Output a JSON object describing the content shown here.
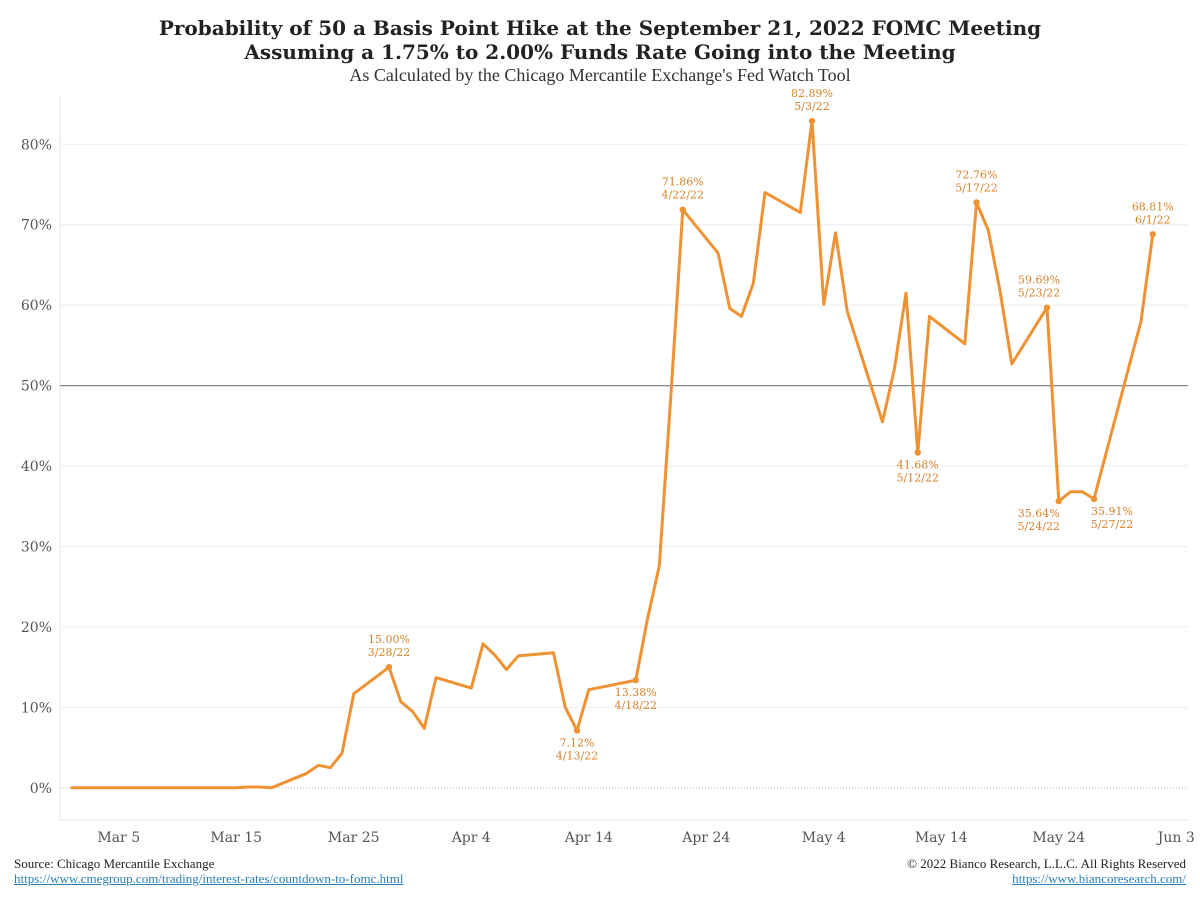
{
  "title": {
    "line1": "Probability of 50 a Basis Point Hike at the September 21, 2022 FOMC Meeting",
    "line2": "Assuming a 1.75% to 2.00% Funds Rate Going into the Meeting",
    "line3": "As Calculated by the Chicago Mercantile Exchange's Fed Watch Tool"
  },
  "footer": {
    "source": "Source: Chicago Mercantile Exchange",
    "source_url": "https://www.cmegroup.com/trading/interest-rates/countdown-to-fomc.html",
    "copyright": "© 2022 Bianco Research, L.L.C. All Rights Reserved",
    "site_url": "https://www.biancoresearch.com/"
  },
  "colors": {
    "line": "#ef9233",
    "label": "#d9822b",
    "reference": "#888888",
    "grid": "#eeeeee",
    "axis_text": "#555555"
  },
  "chart_data": {
    "type": "line",
    "x_type": "date",
    "xlim": [
      "2022-02-28",
      "2022-06-04"
    ],
    "ylim": [
      -4,
      86
    ],
    "y_ticks": [
      0,
      10,
      20,
      30,
      40,
      50,
      60,
      70,
      80
    ],
    "y_tick_labels": [
      "0%",
      "10%",
      "20%",
      "30%",
      "40%",
      "50%",
      "60%",
      "70%",
      "80%"
    ],
    "x_ticks": [
      "2022-03-05",
      "2022-03-15",
      "2022-03-25",
      "2022-04-04",
      "2022-04-14",
      "2022-04-24",
      "2022-05-04",
      "2022-05-14",
      "2022-05-24",
      "2022-06-03"
    ],
    "x_tick_labels": [
      "Mar 5",
      "Mar 15",
      "Mar 25",
      "Apr 4",
      "Apr 14",
      "Apr 24",
      "May 4",
      "May 14",
      "May 24",
      "Jun 3"
    ],
    "grid": true,
    "reference_line": 50,
    "points": [
      {
        "x": "2022-03-01",
        "y": 0.0
      },
      {
        "x": "2022-03-02",
        "y": 0.0
      },
      {
        "x": "2022-03-03",
        "y": 0.0
      },
      {
        "x": "2022-03-04",
        "y": 0.0
      },
      {
        "x": "2022-03-07",
        "y": 0.0
      },
      {
        "x": "2022-03-08",
        "y": 0.0
      },
      {
        "x": "2022-03-09",
        "y": 0.0
      },
      {
        "x": "2022-03-10",
        "y": 0.0
      },
      {
        "x": "2022-03-11",
        "y": 0.0
      },
      {
        "x": "2022-03-14",
        "y": 0.0
      },
      {
        "x": "2022-03-15",
        "y": 0.0
      },
      {
        "x": "2022-03-16",
        "y": 0.1
      },
      {
        "x": "2022-03-17",
        "y": 0.1
      },
      {
        "x": "2022-03-18",
        "y": 0.0
      },
      {
        "x": "2022-03-21",
        "y": 1.8
      },
      {
        "x": "2022-03-22",
        "y": 2.8
      },
      {
        "x": "2022-03-23",
        "y": 2.5
      },
      {
        "x": "2022-03-24",
        "y": 4.3
      },
      {
        "x": "2022-03-25",
        "y": 11.7
      },
      {
        "x": "2022-03-28",
        "y": 15.0
      },
      {
        "x": "2022-03-29",
        "y": 10.7
      },
      {
        "x": "2022-03-30",
        "y": 9.5
      },
      {
        "x": "2022-03-31",
        "y": 7.4
      },
      {
        "x": "2022-04-01",
        "y": 13.7
      },
      {
        "x": "2022-04-04",
        "y": 12.4
      },
      {
        "x": "2022-04-05",
        "y": 17.9
      },
      {
        "x": "2022-04-06",
        "y": 16.5
      },
      {
        "x": "2022-04-07",
        "y": 14.7
      },
      {
        "x": "2022-04-08",
        "y": 16.4
      },
      {
        "x": "2022-04-11",
        "y": 16.8
      },
      {
        "x": "2022-04-12",
        "y": 10.0
      },
      {
        "x": "2022-04-13",
        "y": 7.12
      },
      {
        "x": "2022-04-14",
        "y": 12.2
      },
      {
        "x": "2022-04-18",
        "y": 13.38
      },
      {
        "x": "2022-04-19",
        "y": 21.0
      },
      {
        "x": "2022-04-20",
        "y": 27.6
      },
      {
        "x": "2022-04-21",
        "y": 49.0
      },
      {
        "x": "2022-04-22",
        "y": 71.86
      },
      {
        "x": "2022-04-25",
        "y": 66.5
      },
      {
        "x": "2022-04-26",
        "y": 59.6
      },
      {
        "x": "2022-04-27",
        "y": 58.6
      },
      {
        "x": "2022-04-28",
        "y": 62.7
      },
      {
        "x": "2022-04-29",
        "y": 74.0
      },
      {
        "x": "2022-05-02",
        "y": 71.5
      },
      {
        "x": "2022-05-03",
        "y": 82.89
      },
      {
        "x": "2022-05-04",
        "y": 60.1
      },
      {
        "x": "2022-05-05",
        "y": 69.0
      },
      {
        "x": "2022-05-06",
        "y": 59.2
      },
      {
        "x": "2022-05-09",
        "y": 45.5
      },
      {
        "x": "2022-05-10",
        "y": 52.0
      },
      {
        "x": "2022-05-11",
        "y": 61.5
      },
      {
        "x": "2022-05-12",
        "y": 41.68
      },
      {
        "x": "2022-05-13",
        "y": 58.6
      },
      {
        "x": "2022-05-16",
        "y": 55.2
      },
      {
        "x": "2022-05-17",
        "y": 72.76
      },
      {
        "x": "2022-05-18",
        "y": 69.3
      },
      {
        "x": "2022-05-19",
        "y": 61.8
      },
      {
        "x": "2022-05-20",
        "y": 52.7
      },
      {
        "x": "2022-05-23",
        "y": 59.69
      },
      {
        "x": "2022-05-24",
        "y": 35.64
      },
      {
        "x": "2022-05-25",
        "y": 36.8
      },
      {
        "x": "2022-05-26",
        "y": 36.8
      },
      {
        "x": "2022-05-27",
        "y": 35.91
      },
      {
        "x": "2022-05-31",
        "y": 58.0
      },
      {
        "x": "2022-06-01",
        "y": 68.81
      }
    ],
    "annotations": [
      {
        "x": "2022-03-28",
        "y": 15.0,
        "value": "15.00%",
        "date": "3/28/22",
        "position": "above"
      },
      {
        "x": "2022-04-13",
        "y": 7.12,
        "value": "7.12%",
        "date": "4/13/22",
        "position": "below"
      },
      {
        "x": "2022-04-18",
        "y": 13.38,
        "value": "13.38%",
        "date": "4/18/22",
        "position": "below"
      },
      {
        "x": "2022-04-22",
        "y": 71.86,
        "value": "71.86%",
        "date": "4/22/22",
        "position": "above"
      },
      {
        "x": "2022-05-03",
        "y": 82.89,
        "value": "82.89%",
        "date": "5/3/22",
        "position": "above"
      },
      {
        "x": "2022-05-12",
        "y": 41.68,
        "value": "41.68%",
        "date": "5/12/22",
        "position": "below"
      },
      {
        "x": "2022-05-17",
        "y": 72.76,
        "value": "72.76%",
        "date": "5/17/22",
        "position": "above"
      },
      {
        "x": "2022-05-23",
        "y": 59.69,
        "value": "59.69%",
        "date": "5/23/22",
        "position": "above-left"
      },
      {
        "x": "2022-05-24",
        "y": 35.64,
        "value": "35.64%",
        "date": "5/24/22",
        "position": "below-left"
      },
      {
        "x": "2022-05-27",
        "y": 35.91,
        "value": "35.91%",
        "date": "5/27/22",
        "position": "below-right"
      },
      {
        "x": "2022-06-01",
        "y": 68.81,
        "value": "68.81%",
        "date": "6/1/22",
        "position": "above"
      }
    ]
  }
}
